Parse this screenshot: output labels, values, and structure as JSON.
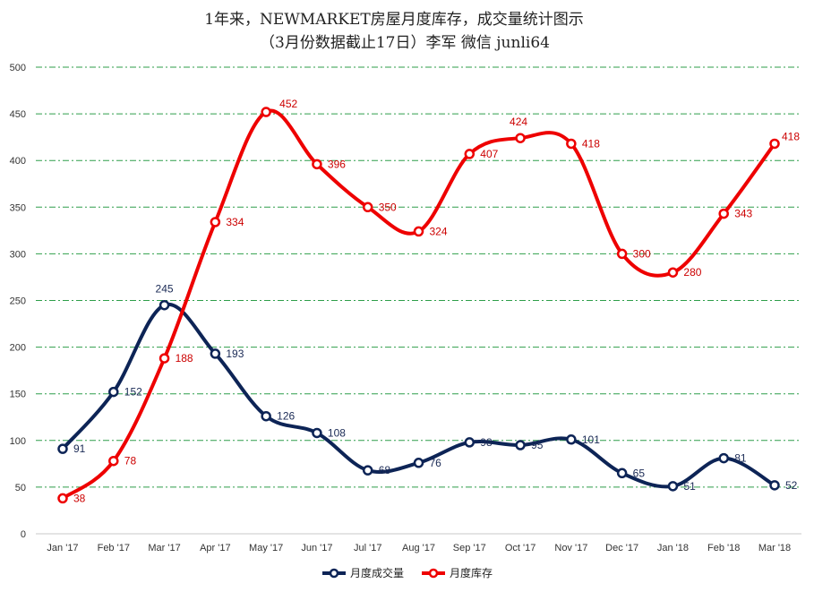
{
  "chart_data": {
    "type": "line",
    "title": "1年来，NEWMARKET房屋月度库存，成交量统计图示",
    "subtitle": "（3月份数据截止17日）李军 微信 junli64",
    "categories": [
      "Jan '17",
      "Feb '17",
      "Mar '17",
      "Apr '17",
      "May '17",
      "Jun '17",
      "Jul '17",
      "Aug '17",
      "Sep '17",
      "Oct '17",
      "Nov '17",
      "Dec '17",
      "Jan '18",
      "Feb '18",
      "Mar '18"
    ],
    "ylim": [
      0,
      500
    ],
    "yticks": [
      0,
      50,
      100,
      150,
      200,
      250,
      300,
      350,
      400,
      450,
      500
    ],
    "grid": true,
    "legend_position": "bottom",
    "series": [
      {
        "name": "月度成交量",
        "color": "#0d2456",
        "values": [
          91,
          152,
          245,
          193,
          126,
          108,
          68,
          76,
          98,
          95,
          101,
          65,
          51,
          81,
          52
        ]
      },
      {
        "name": "月度库存",
        "color": "#ee0000",
        "values": [
          38,
          78,
          188,
          334,
          452,
          396,
          350,
          324,
          407,
          424,
          418,
          300,
          280,
          343,
          418
        ]
      }
    ]
  }
}
